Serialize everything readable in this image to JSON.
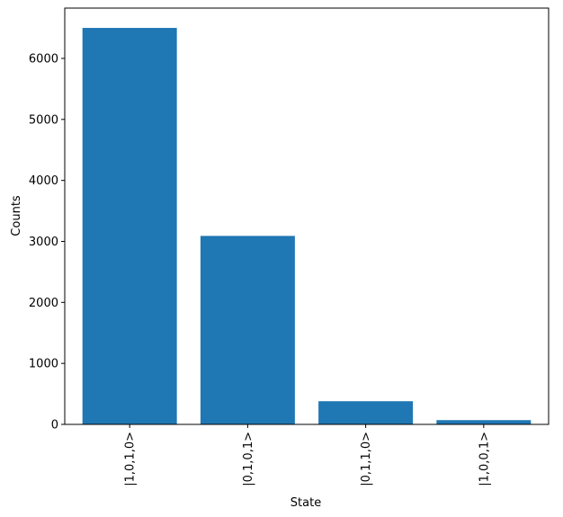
{
  "chart_data": {
    "type": "bar",
    "categories": [
      "|1,0,1,0>",
      "|0,1,0,1>",
      "|0,1,1,0>",
      "|1,0,0,1>"
    ],
    "values": [
      6500,
      3090,
      380,
      70
    ],
    "color": "#1f77b4",
    "xlabel": "State",
    "ylabel": "Counts",
    "ylim": [
      0,
      6825
    ],
    "yticks": [
      0,
      1000,
      2000,
      3000,
      4000,
      5000,
      6000
    ],
    "grid": false
  }
}
